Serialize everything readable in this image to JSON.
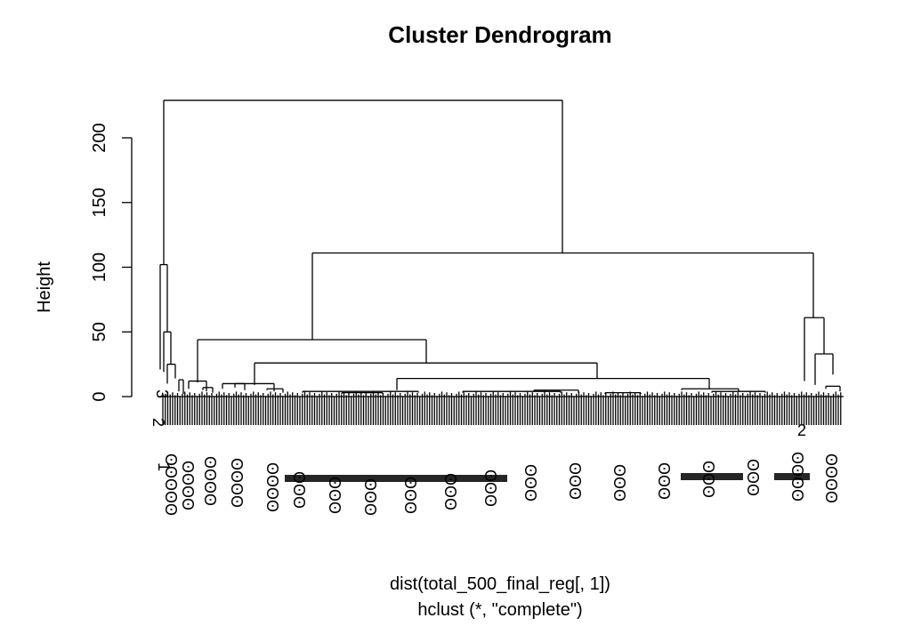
{
  "chart_data": {
    "type": "dendrogram",
    "title": "Cluster Dendrogram",
    "ylabel": "Height",
    "xlabel": "dist(total_500_final_reg[, 1])",
    "sub": "hclust (*, \"complete\")",
    "ylim": [
      0,
      230
    ],
    "yticks": [
      0,
      50,
      100,
      150,
      200
    ],
    "tick_labels": [
      "0",
      "50",
      "100",
      "150",
      "200"
    ],
    "merge_heights": {
      "root": 229,
      "left_main": 102,
      "left_sub": 50,
      "left_inner": 25,
      "right_main": 111,
      "right_mid": 44,
      "right_far": 61,
      "right_far_sub": 33,
      "mid_inner": 26,
      "mid_branch": 14
    },
    "visible_leaf_labels": [
      "2",
      "3",
      "1",
      "2"
    ]
  }
}
